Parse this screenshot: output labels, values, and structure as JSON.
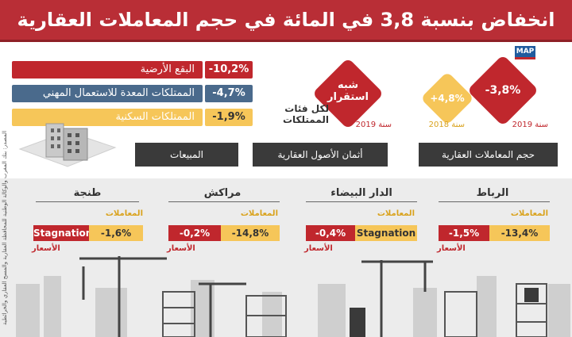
{
  "header": {
    "title": "انخفاض بنسبة 3,8 في المائة في حجم المعاملات العقارية سنة 2019",
    "logo": "MAP"
  },
  "assets": [
    {
      "label": "البقع الأرضية",
      "value": "-10,2%",
      "color": "#c0272d"
    },
    {
      "label": "الممتلكات المعدة للاستعمال المهني",
      "value": "-4,7%",
      "color": "#4a6a8c"
    },
    {
      "label": "الممتلكات السكنية",
      "value": "-1,9%",
      "color": "#f6c659"
    }
  ],
  "prices": {
    "stability_label": "شبه استقرار",
    "categories_label": "لكل فئات الممتلكات",
    "year": "سنة 2019"
  },
  "volume": {
    "value_2019": "-3,8%",
    "year_2019": "سنة 2019",
    "value_2018": "+4,8%",
    "year_2018": "سنة 2018"
  },
  "section_labels": {
    "sales": "المبيعات",
    "prices": "أثمان الأصول العقارية",
    "volume": "حجم المعاملات العقارية"
  },
  "cities": [
    {
      "name": "طنجة",
      "transactions_label": "المعاملات",
      "transactions": "-1,6%",
      "prices_label": "الأسعار",
      "prices": "Stagnation"
    },
    {
      "name": "مراكش",
      "transactions_label": "المعاملات",
      "transactions": "-14,8%",
      "prices_label": "الأسعار",
      "prices": "-0,2%"
    },
    {
      "name": "الدار البيضاء",
      "transactions_label": "المعاملات",
      "transactions": "Stagnation",
      "prices_label": "الأسعار",
      "prices": "-0,4%"
    },
    {
      "name": "الرباط",
      "transactions_label": "المعاملات",
      "transactions": "-13,4%",
      "prices_label": "الأسعار",
      "prices": "-1,5%"
    }
  ],
  "source": "المصدر: بنك المغرب والوكالة الوطنية للمحافظة العقارية والمسح العقاري والخرائطية",
  "colors": {
    "red": "#b92e36",
    "yellow": "#f6c659",
    "dark": "#3a3a3a",
    "slate": "#4a6a8c"
  }
}
